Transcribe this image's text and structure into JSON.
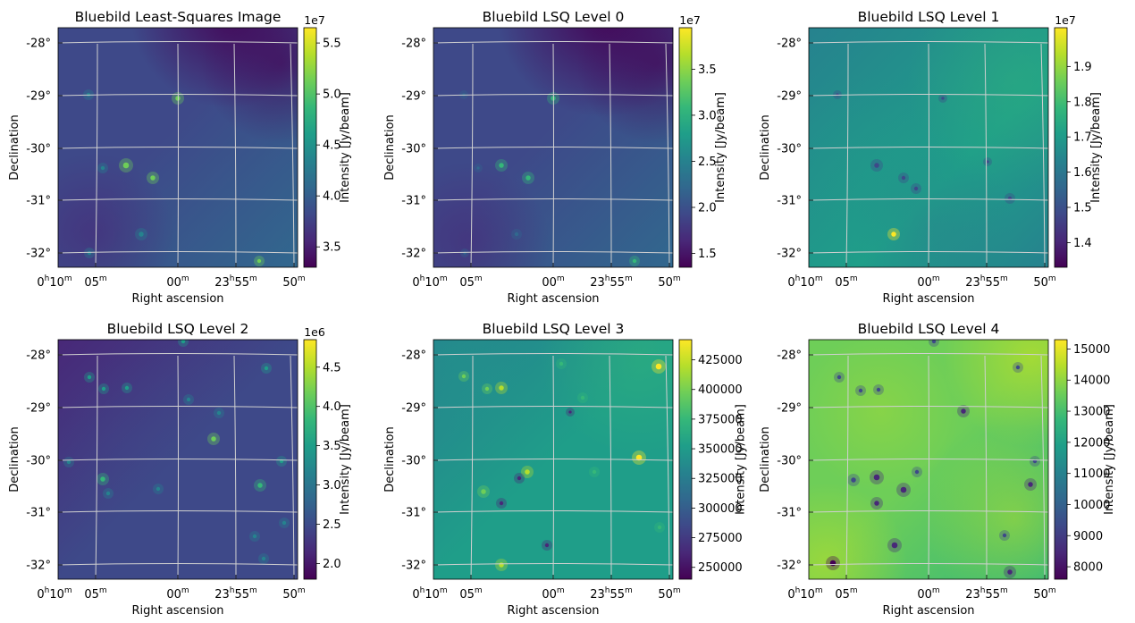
{
  "figure": {
    "xlabel": "Right ascension",
    "ylabel": "Declination",
    "cbar_label": "Intensity [Jy/beam]",
    "colormap": [
      "#440154",
      "#482878",
      "#3e4989",
      "#31688e",
      "#26828e",
      "#1f9e89",
      "#35b779",
      "#6ece58",
      "#b5de2b",
      "#fde725"
    ],
    "grid_color": "#d0d0d0"
  },
  "chart_data": [
    {
      "type": "heatmap",
      "title": "Bluebild Least-Squares Image",
      "xlabel": "Right ascension",
      "ylabel": "Declination",
      "x_ticks": [
        {
          "h": "0",
          "hu": "h",
          "m": "10",
          "mu": "m"
        },
        {
          "m": "05",
          "mu": "m"
        },
        {
          "m": "00",
          "mu": "m"
        },
        {
          "h": "23",
          "hu": "h",
          "m": "55",
          "mu": "m"
        },
        {
          "m": "50",
          "mu": "m"
        }
      ],
      "y_ticks": [
        "-28°",
        "-29°",
        "-30°",
        "-31°",
        "-32°"
      ],
      "y_range_deg": [
        -32.2,
        -27.75
      ],
      "cbar_label": "Intensity [Jy/beam]",
      "cbar_range": [
        33000000,
        56500000
      ],
      "cbar_ticks": [
        "3.5",
        "4.0",
        "4.5",
        "5.0",
        "5.5"
      ],
      "cbar_tick_values": [
        35000000,
        40000000,
        45000000,
        50000000,
        55000000
      ],
      "cbar_offset": "1e7"
    },
    {
      "type": "heatmap",
      "title": "Bluebild LSQ Level 0",
      "xlabel": "Right ascension",
      "ylabel": "Declination",
      "x_ticks": [
        {
          "h": "0",
          "hu": "h",
          "m": "10",
          "mu": "m"
        },
        {
          "m": "05",
          "mu": "m"
        },
        {
          "m": "00",
          "mu": "m"
        },
        {
          "h": "23",
          "hu": "h",
          "m": "55",
          "mu": "m"
        },
        {
          "m": "50",
          "mu": "m"
        }
      ],
      "y_ticks": [
        "-28°",
        "-29°",
        "-30°",
        "-31°",
        "-32°"
      ],
      "y_range_deg": [
        -32.2,
        -27.75
      ],
      "cbar_label": "Intensity [Jy/beam]",
      "cbar_range": [
        13500000,
        39500000
      ],
      "cbar_ticks": [
        "1.5",
        "2.0",
        "2.5",
        "3.0",
        "3.5"
      ],
      "cbar_tick_values": [
        15000000,
        20000000,
        25000000,
        30000000,
        35000000
      ],
      "cbar_offset": "1e7"
    },
    {
      "type": "heatmap",
      "title": "Bluebild LSQ Level 1",
      "xlabel": "Right ascension",
      "ylabel": "Declination",
      "x_ticks": [
        {
          "h": "0",
          "hu": "h",
          "m": "10",
          "mu": "m"
        },
        {
          "m": "05",
          "mu": "m"
        },
        {
          "m": "00",
          "mu": "m"
        },
        {
          "h": "23",
          "hu": "h",
          "m": "55",
          "mu": "m"
        },
        {
          "m": "50",
          "mu": "m"
        }
      ],
      "y_ticks": [
        "-28°",
        "-29°",
        "-30°",
        "-31°",
        "-32°"
      ],
      "y_range_deg": [
        -32.2,
        -27.75
      ],
      "cbar_label": "Intensity [Jy/beam]",
      "cbar_range": [
        13300000,
        20100000
      ],
      "cbar_ticks": [
        "1.4",
        "1.5",
        "1.6",
        "1.7",
        "1.8",
        "1.9"
      ],
      "cbar_tick_values": [
        14000000,
        15000000,
        16000000,
        17000000,
        18000000,
        19000000
      ],
      "cbar_offset": "1e7"
    },
    {
      "type": "heatmap",
      "title": "Bluebild LSQ Level 2",
      "xlabel": "Right ascension",
      "ylabel": "Declination",
      "x_ticks": [
        {
          "h": "0",
          "hu": "h",
          "m": "10",
          "mu": "m"
        },
        {
          "m": "05",
          "mu": "m"
        },
        {
          "m": "00",
          "mu": "m"
        },
        {
          "h": "23",
          "hu": "h",
          "m": "55",
          "mu": "m"
        },
        {
          "m": "50",
          "mu": "m"
        }
      ],
      "y_ticks": [
        "-28°",
        "-29°",
        "-30°",
        "-31°",
        "-32°"
      ],
      "y_range_deg": [
        -32.2,
        -27.75
      ],
      "cbar_label": "Intensity [Jy/beam]",
      "cbar_range": [
        1800000,
        4850000
      ],
      "cbar_ticks": [
        "2.0",
        "2.5",
        "3.0",
        "3.5",
        "4.0",
        "4.5"
      ],
      "cbar_tick_values": [
        2000000,
        2500000,
        3000000,
        3500000,
        4000000,
        4500000
      ],
      "cbar_offset": "1e6"
    },
    {
      "type": "heatmap",
      "title": "Bluebild LSQ Level 3",
      "xlabel": "Right ascension",
      "ylabel": "Declination",
      "x_ticks": [
        {
          "h": "0",
          "hu": "h",
          "m": "10",
          "mu": "m"
        },
        {
          "m": "05",
          "mu": "m"
        },
        {
          "m": "00",
          "mu": "m"
        },
        {
          "h": "23",
          "hu": "h",
          "m": "55",
          "mu": "m"
        },
        {
          "m": "50",
          "mu": "m"
        }
      ],
      "y_ticks": [
        "-28°",
        "-29°",
        "-30°",
        "-31°",
        "-32°"
      ],
      "y_range_deg": [
        -32.2,
        -27.75
      ],
      "cbar_label": "Intensity [Jy/beam]",
      "cbar_range": [
        240000,
        442000
      ],
      "cbar_ticks": [
        "250000",
        "275000",
        "300000",
        "325000",
        "350000",
        "375000",
        "400000",
        "425000"
      ],
      "cbar_tick_values": [
        250000,
        275000,
        300000,
        325000,
        350000,
        375000,
        400000,
        425000
      ],
      "cbar_offset": ""
    },
    {
      "type": "heatmap",
      "title": "Bluebild LSQ Level 4",
      "xlabel": "Right ascension",
      "ylabel": "Declination",
      "x_ticks": [
        {
          "h": "0",
          "hu": "h",
          "m": "10",
          "mu": "m"
        },
        {
          "m": "05",
          "mu": "m"
        },
        {
          "m": "00",
          "mu": "m"
        },
        {
          "h": "23",
          "hu": "h",
          "m": "55",
          "mu": "m"
        },
        {
          "m": "50",
          "mu": "m"
        }
      ],
      "y_ticks": [
        "-28°",
        "-29°",
        "-30°",
        "-31°",
        "-32°"
      ],
      "y_range_deg": [
        -32.2,
        -27.75
      ],
      "cbar_label": "Intensity [Jy/beam]",
      "cbar_range": [
        7600,
        15300
      ],
      "cbar_ticks": [
        "8000",
        "9000",
        "10000",
        "11000",
        "12000",
        "13000",
        "14000",
        "15000"
      ],
      "cbar_tick_values": [
        8000,
        9000,
        10000,
        11000,
        12000,
        13000,
        14000,
        15000
      ],
      "cbar_offset": ""
    }
  ]
}
